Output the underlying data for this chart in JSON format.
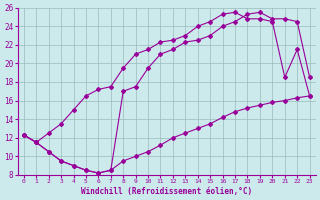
{
  "xlabel": "Windchill (Refroidissement éolien,°C)",
  "xlim": [
    -0.5,
    23.5
  ],
  "ylim": [
    8,
    26
  ],
  "xticks": [
    0,
    1,
    2,
    3,
    4,
    5,
    6,
    7,
    8,
    9,
    10,
    11,
    12,
    13,
    14,
    15,
    16,
    17,
    18,
    19,
    20,
    21,
    22,
    23
  ],
  "yticks": [
    8,
    10,
    12,
    14,
    16,
    18,
    20,
    22,
    24,
    26
  ],
  "bg_color": "#cce9ec",
  "line_color": "#990099",
  "grid_color": "#99bbbb",
  "line1_x": [
    0,
    1,
    2,
    3,
    4,
    5,
    6,
    7,
    8,
    9,
    10,
    11,
    12,
    13,
    14,
    15,
    16,
    17,
    18,
    19,
    20,
    21,
    22,
    23
  ],
  "line1_y": [
    12.3,
    11.5,
    12.5,
    13.5,
    15.0,
    16.5,
    17.2,
    17.5,
    19.5,
    21.0,
    21.5,
    22.3,
    22.5,
    23.0,
    24.0,
    24.5,
    25.3,
    25.5,
    24.8,
    24.8,
    24.5,
    18.5,
    21.5,
    16.5
  ],
  "line2_x": [
    0,
    1,
    2,
    3,
    4,
    5,
    6,
    7,
    8,
    9,
    10,
    11,
    12,
    13,
    14,
    15,
    16,
    17,
    18,
    19,
    20,
    21,
    22,
    23
  ],
  "line2_y": [
    12.3,
    11.5,
    10.5,
    9.5,
    9.0,
    8.5,
    8.2,
    8.5,
    17.0,
    17.5,
    19.5,
    21.0,
    21.5,
    22.3,
    22.5,
    23.0,
    24.0,
    24.5,
    25.3,
    25.5,
    24.8,
    24.8,
    24.5,
    18.5
  ],
  "line3_x": [
    0,
    1,
    2,
    3,
    4,
    5,
    6,
    7,
    8,
    9,
    10,
    11,
    12,
    13,
    14,
    15,
    16,
    17,
    18,
    19,
    20,
    21,
    22,
    23
  ],
  "line3_y": [
    12.3,
    11.5,
    10.5,
    9.5,
    9.0,
    8.5,
    8.2,
    8.5,
    9.5,
    10.0,
    10.5,
    11.2,
    12.0,
    12.5,
    13.0,
    13.5,
    14.2,
    14.8,
    15.2,
    15.5,
    15.8,
    16.0,
    16.3,
    16.5
  ]
}
